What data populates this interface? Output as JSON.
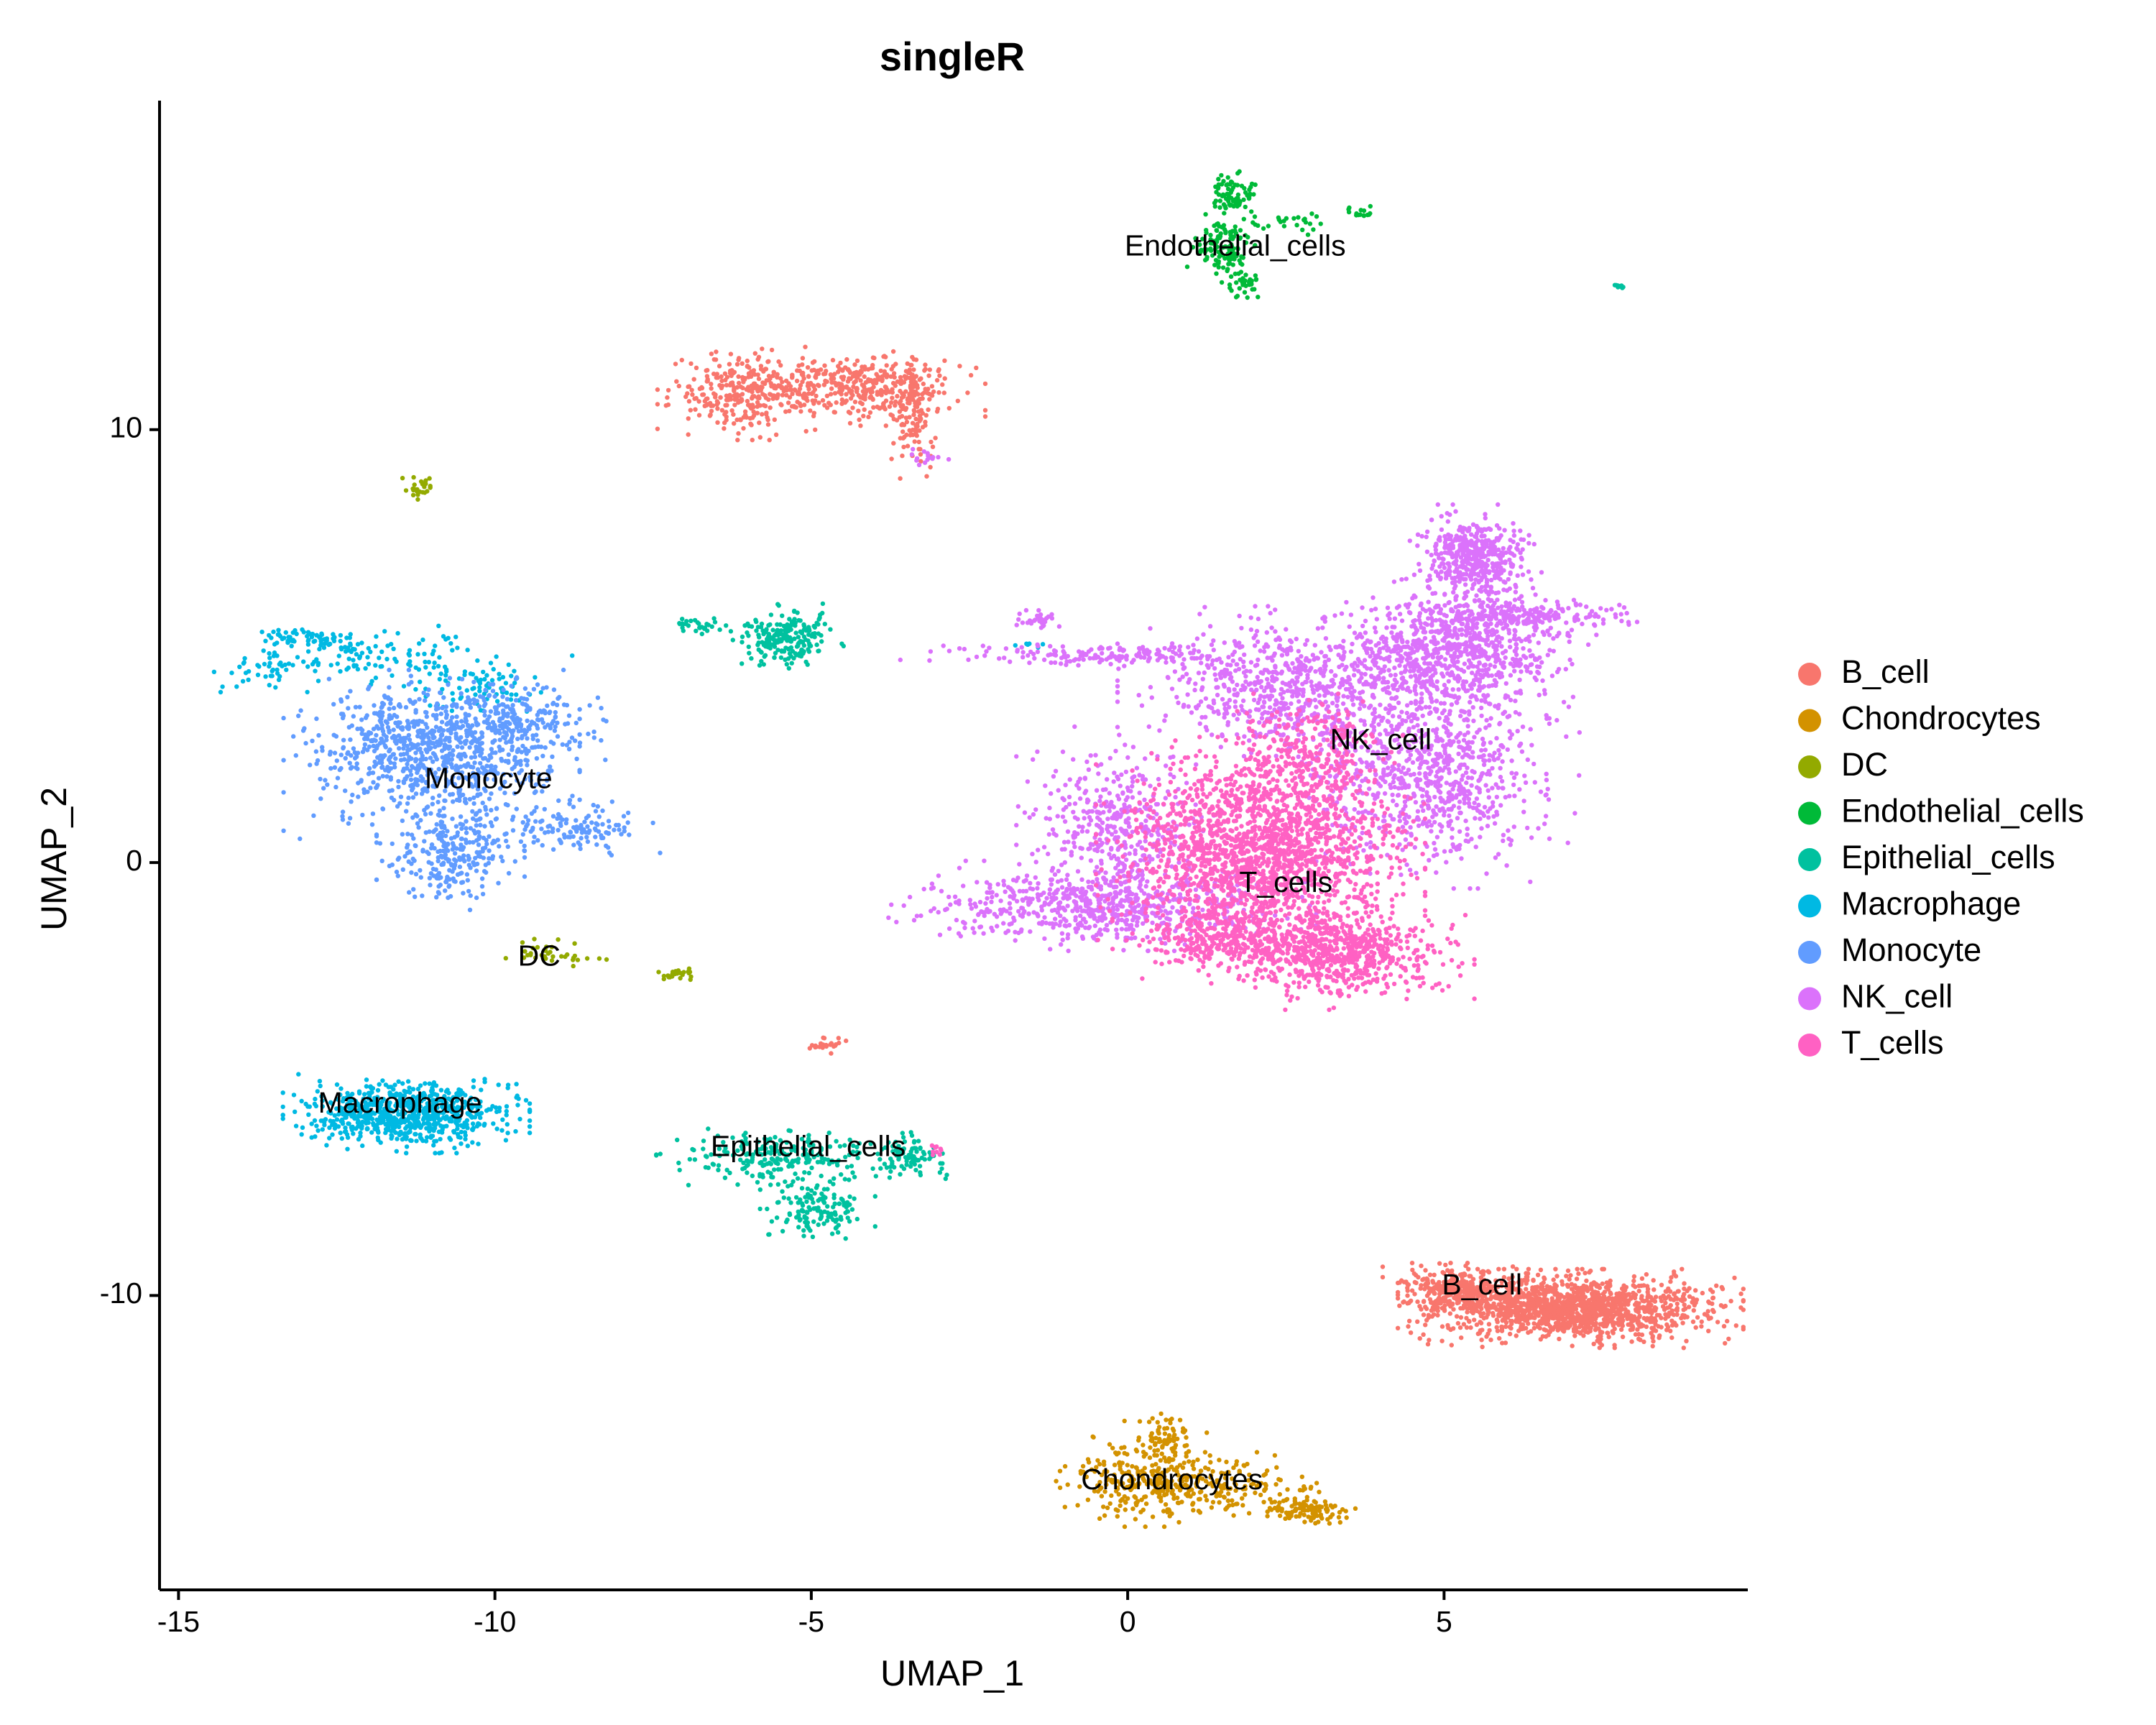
{
  "chart_data": {
    "type": "scatter",
    "title": "singleR",
    "xlabel": "UMAP_1",
    "ylabel": "UMAP_2",
    "xlim": [
      -15.3,
      9.8
    ],
    "ylim": [
      -16.8,
      17.6
    ],
    "xticks": [
      -15,
      -10,
      -5,
      0,
      5
    ],
    "yticks": [
      10,
      0,
      -10
    ],
    "xtick_labels": [
      "-15",
      "-10",
      "-5",
      "0",
      "5"
    ],
    "ytick_labels": [
      "10",
      "0",
      "-10"
    ],
    "grid": false,
    "legend_position": "right",
    "series": [
      {
        "name": "B_cell",
        "color": "#F8766D",
        "clusters": [
          {
            "x": 7.0,
            "y": -10.3,
            "sx": 1.05,
            "sy": 0.35,
            "n": 1400
          },
          {
            "x": 5.2,
            "y": -9.9,
            "sx": 0.45,
            "sy": 0.25,
            "n": 300
          },
          {
            "x": -4.2,
            "y": 11.0,
            "sx": 0.75,
            "sy": 0.35,
            "n": 350
          },
          {
            "x": -6.0,
            "y": 10.8,
            "sx": 0.55,
            "sy": 0.4,
            "n": 300
          },
          {
            "x": -3.4,
            "y": 10.4,
            "sx": 0.15,
            "sy": 0.65,
            "n": 120
          },
          {
            "x": -4.75,
            "y": -4.2,
            "sx": 0.12,
            "sy": 0.08,
            "n": 25
          }
        ]
      },
      {
        "name": "Chondrocytes",
        "color": "#D39200",
        "clusters": [
          {
            "x": 0.3,
            "y": -14.3,
            "sx": 0.55,
            "sy": 0.4,
            "n": 260
          },
          {
            "x": 1.7,
            "y": -14.4,
            "sx": 0.7,
            "sy": 0.3,
            "n": 160
          },
          {
            "x": 2.8,
            "y": -15.0,
            "sx": 0.35,
            "sy": 0.12,
            "n": 90
          },
          {
            "x": 0.6,
            "y": -13.3,
            "sx": 0.25,
            "sy": 0.25,
            "n": 70
          }
        ]
      },
      {
        "name": "DC",
        "color": "#93AA00",
        "clusters": [
          {
            "x": -11.2,
            "y": 8.7,
            "sx": 0.1,
            "sy": 0.12,
            "n": 25
          },
          {
            "x": -9.1,
            "y": -2.1,
            "sx": 0.35,
            "sy": 0.18,
            "n": 35
          },
          {
            "x": -7.1,
            "y": -2.6,
            "sx": 0.12,
            "sy": 0.06,
            "n": 25
          }
        ]
      },
      {
        "name": "Endothelial_cells",
        "color": "#00BA38",
        "clusters": [
          {
            "x": 1.7,
            "y": 15.4,
            "sx": 0.18,
            "sy": 0.25,
            "n": 80
          },
          {
            "x": 1.5,
            "y": 14.2,
            "sx": 0.22,
            "sy": 0.3,
            "n": 110
          },
          {
            "x": 1.8,
            "y": 13.4,
            "sx": 0.12,
            "sy": 0.2,
            "n": 40
          },
          {
            "x": 2.6,
            "y": 14.8,
            "sx": 0.35,
            "sy": 0.12,
            "n": 25
          },
          {
            "x": 3.7,
            "y": 15.0,
            "sx": 0.15,
            "sy": 0.08,
            "n": 15
          }
        ]
      },
      {
        "name": "Epithelial_cells",
        "color": "#00C19F",
        "clusters": [
          {
            "x": -5.4,
            "y": 5.2,
            "sx": 0.35,
            "sy": 0.3,
            "n": 220
          },
          {
            "x": -6.7,
            "y": 5.5,
            "sx": 0.3,
            "sy": 0.1,
            "n": 30
          },
          {
            "x": -5.5,
            "y": -6.8,
            "sx": 0.75,
            "sy": 0.25,
            "n": 220
          },
          {
            "x": -3.5,
            "y": -6.8,
            "sx": 0.3,
            "sy": 0.25,
            "n": 90
          },
          {
            "x": -4.9,
            "y": -8.0,
            "sx": 0.35,
            "sy": 0.3,
            "n": 140
          },
          {
            "x": 7.8,
            "y": 13.3,
            "sx": 0.05,
            "sy": 0.04,
            "n": 8
          }
        ]
      },
      {
        "name": "Macrophage",
        "color": "#00B9E3",
        "clusters": [
          {
            "x": -11.4,
            "y": -5.8,
            "sx": 0.75,
            "sy": 0.35,
            "n": 750
          },
          {
            "x": -12.9,
            "y": 5.2,
            "sx": 0.3,
            "sy": 0.1,
            "n": 60
          },
          {
            "x": -13.7,
            "y": 4.5,
            "sx": 0.35,
            "sy": 0.25,
            "n": 40
          },
          {
            "x": -11.7,
            "y": 4.7,
            "sx": 0.8,
            "sy": 0.3,
            "n": 120
          },
          {
            "x": -10.2,
            "y": 4.0,
            "sx": 0.55,
            "sy": 0.3,
            "n": 70
          },
          {
            "x": -1.6,
            "y": 5.0,
            "sx": 0.1,
            "sy": 0.05,
            "n": 6
          }
        ]
      },
      {
        "name": "Monocyte",
        "color": "#619CFF",
        "clusters": [
          {
            "x": -11.0,
            "y": 2.5,
            "sx": 0.9,
            "sy": 0.75,
            "n": 800
          },
          {
            "x": -9.8,
            "y": 3.2,
            "sx": 0.6,
            "sy": 0.5,
            "n": 250
          },
          {
            "x": -10.7,
            "y": 0.2,
            "sx": 0.45,
            "sy": 0.55,
            "n": 260
          },
          {
            "x": -8.8,
            "y": 0.8,
            "sx": 0.55,
            "sy": 0.3,
            "n": 130
          }
        ]
      },
      {
        "name": "NK_cell",
        "color": "#DB72FB",
        "clusters": [
          {
            "x": 5.5,
            "y": 7.1,
            "sx": 0.4,
            "sy": 0.45,
            "n": 450
          },
          {
            "x": 5.2,
            "y": 4.9,
            "sx": 0.8,
            "sy": 0.7,
            "n": 800
          },
          {
            "x": 2.7,
            "y": 4.1,
            "sx": 1.1,
            "sy": 0.7,
            "n": 750
          },
          {
            "x": 4.8,
            "y": 2.0,
            "sx": 0.9,
            "sy": 1.0,
            "n": 800
          },
          {
            "x": -0.4,
            "y": -1.0,
            "sx": 1.3,
            "sy": 0.4,
            "n": 650
          },
          {
            "x": -0.2,
            "y": 0.8,
            "sx": 0.6,
            "sy": 0.9,
            "n": 420
          },
          {
            "x": 6.5,
            "y": 5.7,
            "sx": 0.7,
            "sy": 0.18,
            "n": 200
          },
          {
            "x": -0.6,
            "y": 4.8,
            "sx": 1.2,
            "sy": 0.1,
            "n": 170
          },
          {
            "x": -1.4,
            "y": 5.6,
            "sx": 0.15,
            "sy": 0.1,
            "n": 30
          },
          {
            "x": -3.2,
            "y": 9.3,
            "sx": 0.15,
            "sy": 0.15,
            "n": 15
          }
        ]
      },
      {
        "name": "T_cells",
        "color": "#FF61C3",
        "clusters": [
          {
            "x": 2.1,
            "y": 0.3,
            "sx": 1.0,
            "sy": 1.0,
            "n": 1800
          },
          {
            "x": 3.4,
            "y": -2.1,
            "sx": 0.8,
            "sy": 0.5,
            "n": 650
          },
          {
            "x": 1.8,
            "y": -1.8,
            "sx": 0.7,
            "sy": 0.35,
            "n": 350
          },
          {
            "x": 2.8,
            "y": 2.6,
            "sx": 0.6,
            "sy": 0.5,
            "n": 250
          },
          {
            "x": -3.0,
            "y": -6.6,
            "sx": 0.1,
            "sy": 0.1,
            "n": 10
          }
        ]
      }
    ],
    "cluster_labels": [
      {
        "text": "Endothelial_cells",
        "x": 1.7,
        "y": 14.2
      },
      {
        "text": "NK_cell",
        "x": 4.0,
        "y": 2.8
      },
      {
        "text": "T_cells",
        "x": 2.5,
        "y": -0.5
      },
      {
        "text": "Monocyte",
        "x": -10.1,
        "y": 1.9
      },
      {
        "text": "DC",
        "x": -9.3,
        "y": -2.2
      },
      {
        "text": "Macrophage",
        "x": -11.5,
        "y": -5.6
      },
      {
        "text": "Epithelial_cells",
        "x": -5.05,
        "y": -6.6
      },
      {
        "text": "B_cell",
        "x": 5.6,
        "y": -9.8
      },
      {
        "text": "Chondrocytes",
        "x": 0.7,
        "y": -14.3
      }
    ]
  }
}
